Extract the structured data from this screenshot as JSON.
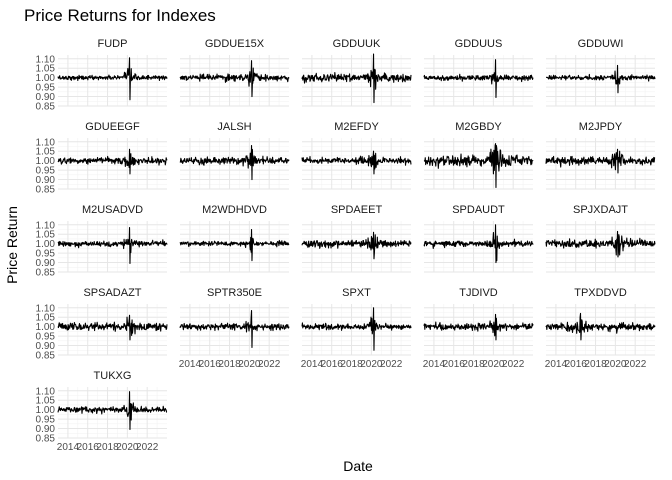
{
  "chart_data": {
    "type": "line",
    "title": "Price Returns for Indexes",
    "xlabel": "Date",
    "ylabel": "Price Return",
    "xlim": [
      "2013-01-01",
      "2023-12-31"
    ],
    "ylim": [
      0.85,
      1.12
    ],
    "x_ticks": [
      "2014",
      "2016",
      "2018",
      "2020",
      "2022"
    ],
    "y_ticks": [
      "0.85",
      "0.90",
      "0.95",
      "1.00",
      "1.05",
      "1.10"
    ],
    "grid": true,
    "theme": "minimal",
    "line_color": "#000000",
    "facets": [
      {
        "name": "FUDP",
        "baseline": 1.0,
        "volatility": 0.006,
        "min": 0.883,
        "max": 1.105,
        "extreme_year": 2020.2
      },
      {
        "name": "GDDUE15X",
        "baseline": 1.0,
        "volatility": 0.008,
        "min": 0.9,
        "max": 1.09,
        "extreme_year": 2020.2
      },
      {
        "name": "GDDUUK",
        "baseline": 1.0,
        "volatility": 0.01,
        "min": 0.868,
        "max": 1.125,
        "extreme_year": 2020.2
      },
      {
        "name": "GDDUUS",
        "baseline": 1.0,
        "volatility": 0.007,
        "min": 0.895,
        "max": 1.095,
        "extreme_year": 2020.2
      },
      {
        "name": "GDDUWI",
        "baseline": 1.0,
        "volatility": 0.006,
        "min": 0.92,
        "max": 1.065,
        "extreme_year": 2020.2
      },
      {
        "name": "GDUEEGF",
        "baseline": 1.0,
        "volatility": 0.008,
        "min": 0.93,
        "max": 1.06,
        "extreme_year": 2020.2
      },
      {
        "name": "JALSH",
        "baseline": 1.0,
        "volatility": 0.009,
        "min": 0.9,
        "max": 1.08,
        "extreme_year": 2020.2
      },
      {
        "name": "M2EFDY",
        "baseline": 1.0,
        "volatility": 0.008,
        "min": 0.93,
        "max": 1.05,
        "extreme_year": 2020.2
      },
      {
        "name": "M2GBDY",
        "baseline": 1.0,
        "volatility": 0.014,
        "min": 0.858,
        "max": 1.09,
        "extreme_year": 2020.2
      },
      {
        "name": "M2JPDY",
        "baseline": 1.0,
        "volatility": 0.01,
        "min": 0.935,
        "max": 1.06,
        "extreme_year": 2020.2
      },
      {
        "name": "M2USADVD",
        "baseline": 1.0,
        "volatility": 0.007,
        "min": 0.895,
        "max": 1.085,
        "extreme_year": 2020.2
      },
      {
        "name": "M2WDHDVD",
        "baseline": 1.0,
        "volatility": 0.006,
        "min": 0.91,
        "max": 1.075,
        "extreme_year": 2020.2
      },
      {
        "name": "SPDAEET",
        "baseline": 1.0,
        "volatility": 0.009,
        "min": 0.92,
        "max": 1.06,
        "extreme_year": 2020.2
      },
      {
        "name": "SPDAUDT",
        "baseline": 1.0,
        "volatility": 0.008,
        "min": 0.9,
        "max": 1.1,
        "extreme_year": 2020.2
      },
      {
        "name": "SPJXDAJT",
        "baseline": 1.0,
        "volatility": 0.01,
        "min": 0.93,
        "max": 1.065,
        "extreme_year": 2020.2
      },
      {
        "name": "SPSADAZT",
        "baseline": 1.0,
        "volatility": 0.01,
        "min": 0.93,
        "max": 1.06,
        "extreme_year": 2020.2
      },
      {
        "name": "SPTR350E",
        "baseline": 1.0,
        "volatility": 0.008,
        "min": 0.89,
        "max": 1.085,
        "extreme_year": 2020.2
      },
      {
        "name": "SPXT",
        "baseline": 1.0,
        "volatility": 0.007,
        "min": 0.875,
        "max": 1.1,
        "extreme_year": 2020.2
      },
      {
        "name": "TJDIVD",
        "baseline": 1.0,
        "volatility": 0.009,
        "min": 0.93,
        "max": 1.065,
        "extreme_year": 2020.2
      },
      {
        "name": "TPXDDVD",
        "baseline": 1.0,
        "volatility": 0.01,
        "min": 0.93,
        "max": 1.07,
        "extreme_year": 2016.5
      },
      {
        "name": "TUKXG",
        "baseline": 1.0,
        "volatility": 0.007,
        "min": 0.895,
        "max": 1.095,
        "extreme_year": 2020.2
      }
    ]
  }
}
